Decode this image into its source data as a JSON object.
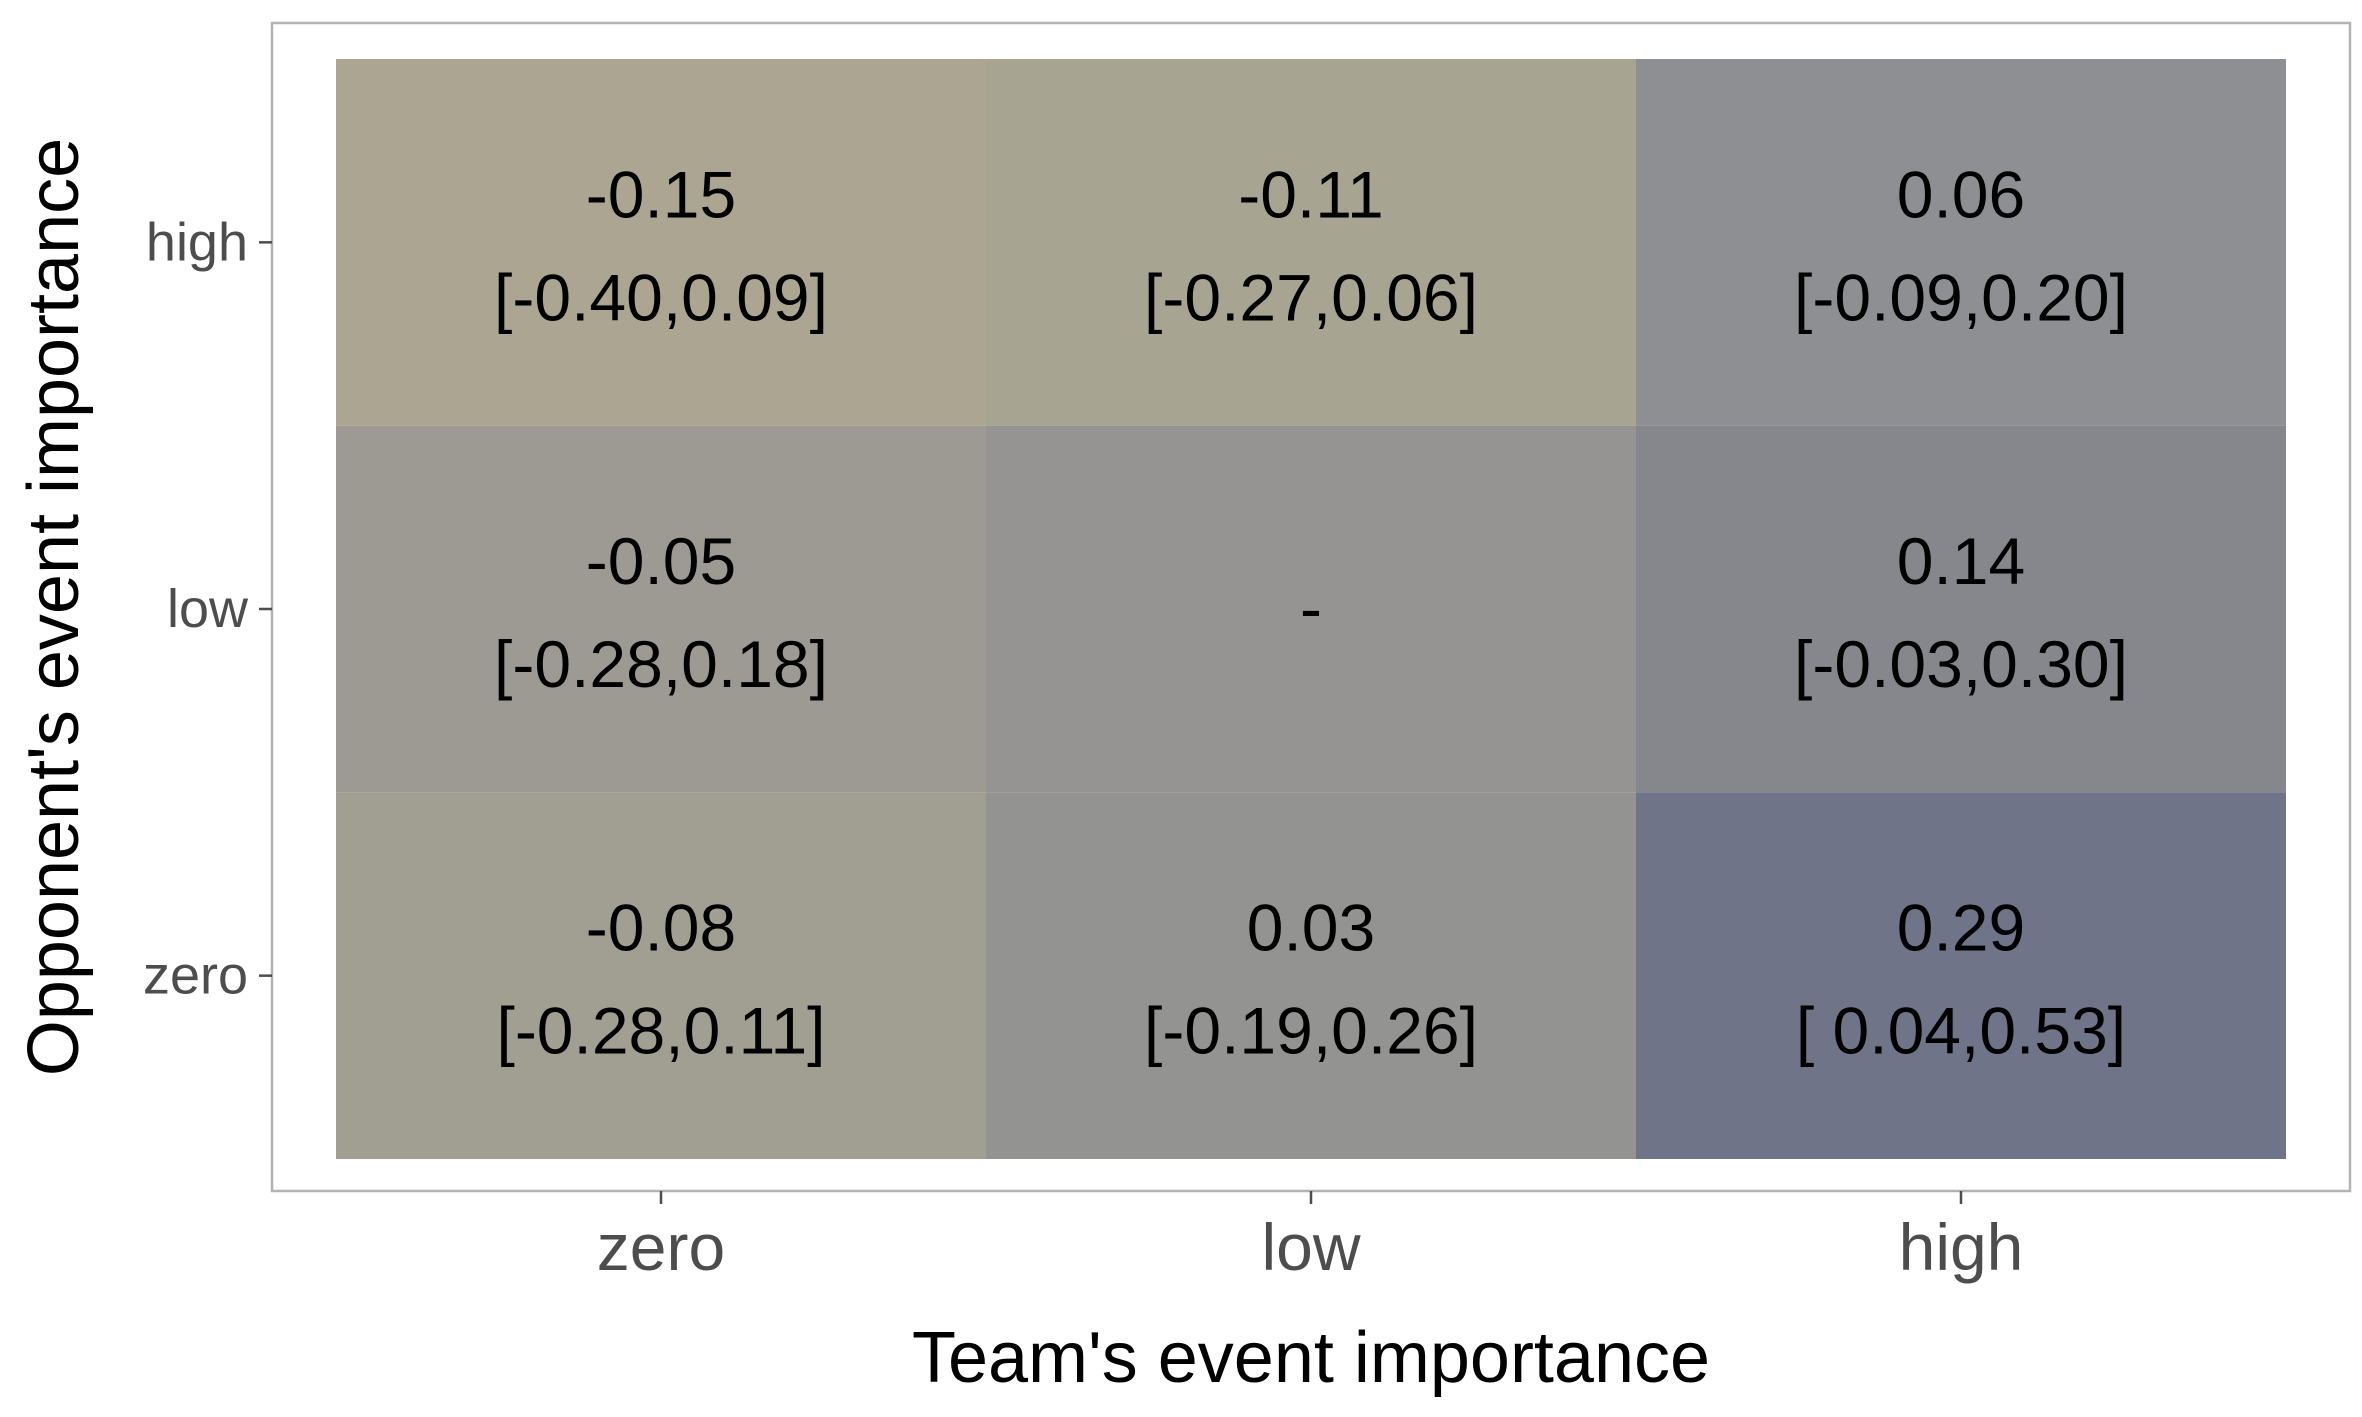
{
  "chart_data": {
    "type": "heatmap",
    "title": "",
    "xlabel": "Team's event importance",
    "ylabel": "Opponent's event importance",
    "x_categories": [
      "zero",
      "low",
      "high"
    ],
    "y_categories": [
      "zero",
      "low",
      "high"
    ],
    "cells": [
      {
        "x": "zero",
        "y": "high",
        "value": -0.15,
        "label": "-0.15",
        "ci": "[-0.40,0.09]",
        "color": "#aba592"
      },
      {
        "x": "low",
        "y": "high",
        "value": -0.11,
        "label": "-0.11",
        "ci": "[-0.27,0.06]",
        "color": "#a7a592"
      },
      {
        "x": "high",
        "y": "high",
        "value": 0.06,
        "label": "0.06",
        "ci": "[-0.09,0.20]",
        "color": "#8d8f92"
      },
      {
        "x": "zero",
        "y": "low",
        "value": -0.05,
        "label": "-0.05",
        "ci": "[-0.28,0.18]",
        "color": "#9c9a92"
      },
      {
        "x": "low",
        "y": "low",
        "value": null,
        "label": "-",
        "ci": "",
        "color": "#959492"
      },
      {
        "x": "high",
        "y": "low",
        "value": 0.14,
        "label": "0.14",
        "ci": "[-0.03,0.30]",
        "color": "#86878d"
      },
      {
        "x": "zero",
        "y": "zero",
        "value": -0.08,
        "label": "-0.08",
        "ci": "[-0.28,0.11]",
        "color": "#a19e92"
      },
      {
        "x": "low",
        "y": "zero",
        "value": 0.03,
        "label": "0.03",
        "ci": "[-0.19,0.26]",
        "color": "#939392"
      },
      {
        "x": "high",
        "y": "zero",
        "value": 0.29,
        "label": "0.29",
        "ci": "[ 0.04,0.53]",
        "color": "#6f7488"
      }
    ],
    "grid": false,
    "legend": "none"
  }
}
